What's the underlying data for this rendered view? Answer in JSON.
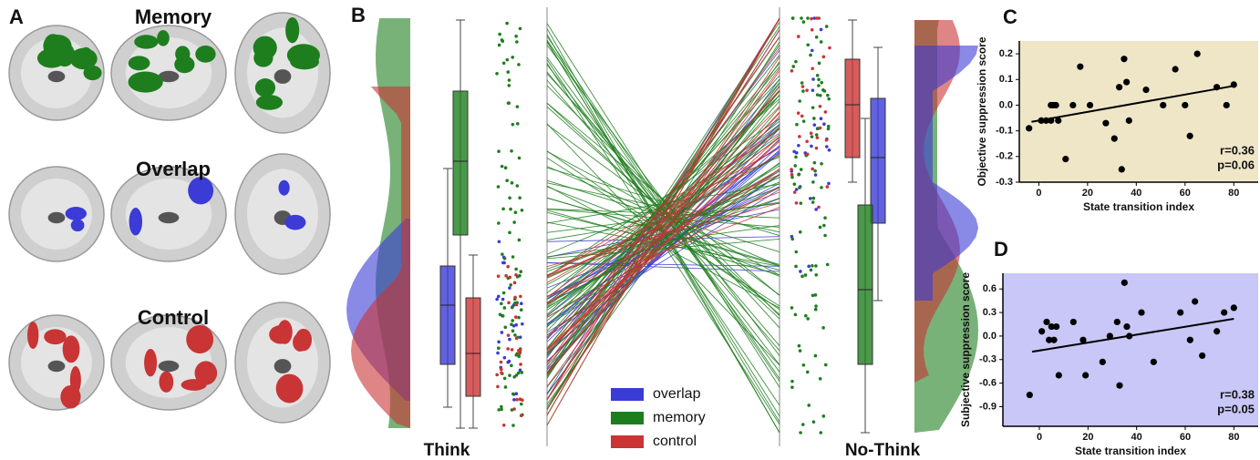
{
  "panel_a": {
    "label": "A",
    "titles": [
      "Memory",
      "Overlap",
      "Control"
    ]
  },
  "panel_b": {
    "label": "B",
    "conditions": [
      "Think",
      "No-Think"
    ],
    "legend": [
      {
        "name": "overlap",
        "color": "#3b3bd6"
      },
      {
        "name": "memory",
        "color": "#1e7e1e"
      },
      {
        "name": "control",
        "color": "#c93434"
      }
    ]
  },
  "chart_data": [
    {
      "type": "scatter",
      "panel_label": "C",
      "xlabel": "State transition index",
      "ylabel": "Objective suppression score",
      "background": "#efe6c8",
      "color": "#000000",
      "x": [
        -4,
        1,
        3,
        5,
        6,
        7,
        5,
        8,
        11,
        14,
        17,
        21,
        27.5,
        31,
        33,
        34,
        35,
        36,
        37,
        44,
        51,
        56,
        60,
        62,
        65,
        73,
        77,
        80
      ],
      "y": [
        -0.09,
        -0.06,
        -0.06,
        0.0,
        0.0,
        0.0,
        -0.06,
        -0.06,
        -0.21,
        0.0,
        0.15,
        0.0,
        -0.07,
        -0.13,
        0.07,
        -0.25,
        0.18,
        0.09,
        -0.06,
        0.06,
        0.0,
        0.14,
        0.0,
        -0.12,
        0.2,
        0.07,
        0.0,
        0.08
      ],
      "trend": {
        "x": [
          -3,
          80
        ],
        "y": [
          -0.065,
          0.075
        ]
      },
      "annotations": [
        "r=0.36",
        "p=0.06"
      ],
      "xlim": [
        -8,
        90
      ],
      "xticks": [
        0,
        20,
        40,
        60,
        80
      ],
      "ylim": [
        -0.3,
        0.25
      ],
      "yticks": [
        0.2,
        0.1,
        {
          "value": 0,
          "label": "0.0"
        },
        -0.1,
        -0.2,
        -0.3
      ]
    },
    {
      "type": "scatter",
      "panel_label": "D",
      "xlabel": "State transition index",
      "ylabel": "Subjective suppression score",
      "background": "#c9c7f7",
      "color": "#000000",
      "x": [
        -4,
        1,
        3,
        5,
        4,
        6,
        7,
        8,
        14,
        18,
        19,
        26,
        29,
        32,
        33,
        35,
        36,
        37,
        42,
        47,
        58,
        62,
        64,
        67,
        73,
        76,
        80
      ],
      "y": [
        -0.75,
        0.06,
        0.18,
        0.12,
        -0.05,
        -0.05,
        0.12,
        -0.5,
        0.18,
        -0.05,
        -0.5,
        -0.33,
        0.0,
        0.18,
        -0.63,
        0.68,
        0.12,
        0.0,
        0.3,
        -0.33,
        0.3,
        -0.05,
        0.44,
        -0.25,
        0.06,
        0.3,
        0.36
      ],
      "trend": {
        "x": [
          -3,
          80
        ],
        "y": [
          -0.2,
          0.22
        ]
      },
      "annotations": [
        "r=0.38",
        "p=0.05"
      ],
      "xlim": [
        -15,
        90
      ],
      "xticks": [
        0,
        20,
        40,
        60,
        80
      ],
      "ylim": [
        -1.15,
        0.8
      ],
      "yticks": [
        0.6,
        0.3,
        {
          "value": 0,
          "label": "0.0"
        },
        -0.3,
        -0.6,
        -0.9
      ]
    }
  ]
}
